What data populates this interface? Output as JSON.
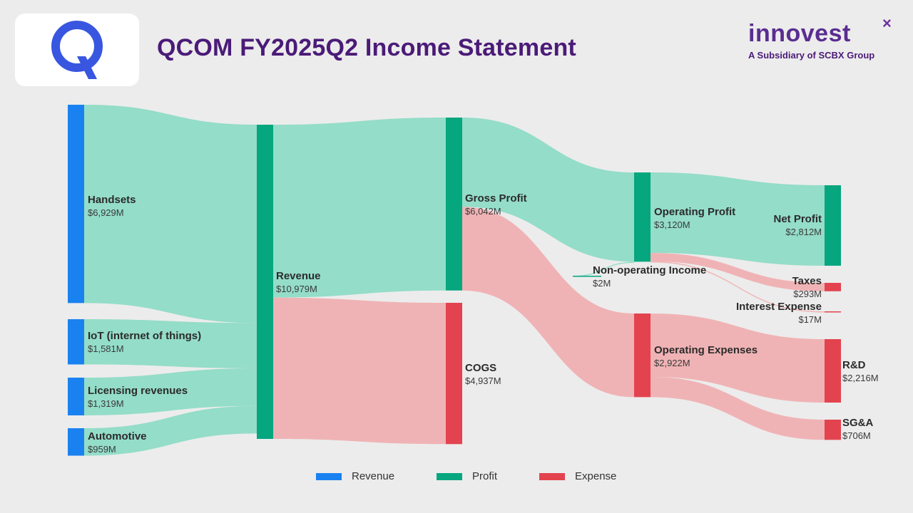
{
  "header": {
    "title": "QCOM FY2025Q2 Income Statement",
    "brand_name": "innovest",
    "brand_mark": "×",
    "brand_subtitle": "A Subsidiary of SCBX Group",
    "logo_letter": "Q"
  },
  "colors": {
    "revenue": "#1a82f0",
    "revenue_flow": "#a3d3fc",
    "profit": "#06a67f",
    "profit_flow": "#8fdcc6",
    "expense": "#e3434e",
    "expense_flow": "#f0b0b2",
    "brand": "#4b1b78",
    "logo": "#3856e0"
  },
  "legend": [
    {
      "label": "Revenue",
      "color": "#1a82f0"
    },
    {
      "label": "Profit",
      "color": "#06a67f"
    },
    {
      "label": "Expense",
      "color": "#e3434e"
    }
  ],
  "chart_data": {
    "type": "sankey",
    "unit": "$M",
    "nodes": [
      {
        "id": "handsets",
        "name": "Handsets",
        "value": 6929,
        "display": "$6,929M",
        "category": "revenue"
      },
      {
        "id": "iot",
        "name": "IoT (internet of things)",
        "value": 1581,
        "display": "$1,581M",
        "category": "revenue"
      },
      {
        "id": "licensing",
        "name": "Licensing revenues",
        "value": 1319,
        "display": "$1,319M",
        "category": "revenue"
      },
      {
        "id": "automotive",
        "name": "Automotive",
        "value": 959,
        "display": "$959M",
        "category": "revenue"
      },
      {
        "id": "revenue",
        "name": "Revenue",
        "value": 10979,
        "display": "$10,979M",
        "category": "profit"
      },
      {
        "id": "gross_profit",
        "name": "Gross Profit",
        "value": 6042,
        "display": "$6,042M",
        "category": "profit"
      },
      {
        "id": "cogs",
        "name": "COGS",
        "value": 4937,
        "display": "$4,937M",
        "category": "expense"
      },
      {
        "id": "operating_profit",
        "name": "Operating Profit",
        "value": 3120,
        "display": "$3,120M",
        "category": "profit"
      },
      {
        "id": "operating_expenses",
        "name": "Operating Expenses",
        "value": 2922,
        "display": "$2,922M",
        "category": "expense"
      },
      {
        "id": "non_operating_income",
        "name": "Non-operating Income",
        "value": 2,
        "display": "$2M",
        "category": "profit"
      },
      {
        "id": "net_profit",
        "name": "Net Profit",
        "value": 2812,
        "display": "$2,812M",
        "category": "profit"
      },
      {
        "id": "taxes",
        "name": "Taxes",
        "value": 293,
        "display": "$293M",
        "category": "expense"
      },
      {
        "id": "interest_expense",
        "name": "Interest Expense",
        "value": 17,
        "display": "$17M",
        "category": "expense"
      },
      {
        "id": "rnd",
        "name": "R&D",
        "value": 2216,
        "display": "$2,216M",
        "category": "expense"
      },
      {
        "id": "sga",
        "name": "SG&A",
        "value": 706,
        "display": "$706M",
        "category": "expense"
      }
    ],
    "links": [
      {
        "source": "handsets",
        "target": "revenue",
        "value": 6929
      },
      {
        "source": "iot",
        "target": "revenue",
        "value": 1581
      },
      {
        "source": "licensing",
        "target": "revenue",
        "value": 1319
      },
      {
        "source": "automotive",
        "target": "revenue",
        "value": 959
      },
      {
        "source": "revenue",
        "target": "gross_profit",
        "value": 6042
      },
      {
        "source": "revenue",
        "target": "cogs",
        "value": 4937
      },
      {
        "source": "gross_profit",
        "target": "operating_profit",
        "value": 3120
      },
      {
        "source": "gross_profit",
        "target": "operating_expenses",
        "value": 2922
      },
      {
        "source": "non_operating_income",
        "target": "operating_profit",
        "value": 2
      },
      {
        "source": "operating_profit",
        "target": "net_profit",
        "value": 2812
      },
      {
        "source": "operating_profit",
        "target": "taxes",
        "value": 293
      },
      {
        "source": "operating_profit",
        "target": "interest_expense",
        "value": 17
      },
      {
        "source": "operating_expenses",
        "target": "rnd",
        "value": 2216
      },
      {
        "source": "operating_expenses",
        "target": "sga",
        "value": 706
      }
    ]
  }
}
